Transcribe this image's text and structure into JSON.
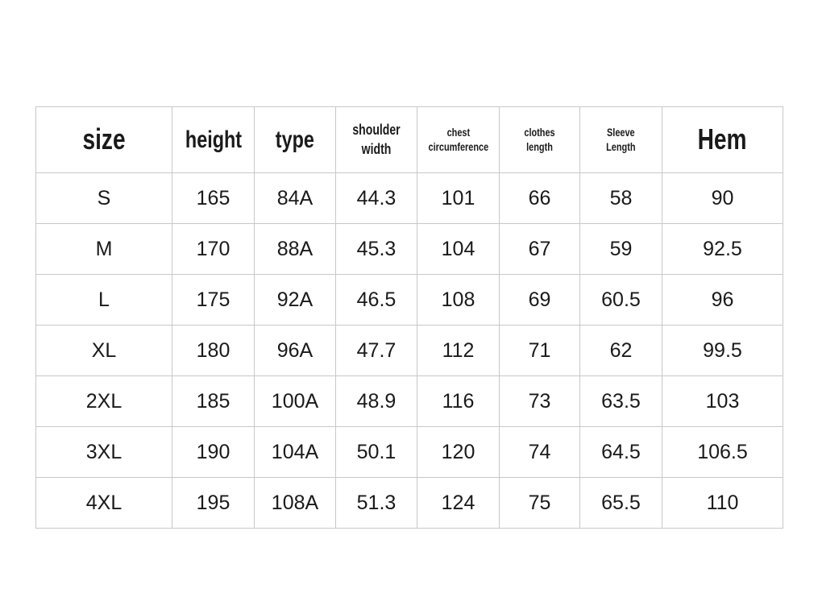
{
  "table": {
    "headers": [
      {
        "line1": "size",
        "line2": ""
      },
      {
        "line1": "height",
        "line2": ""
      },
      {
        "line1": "type",
        "line2": ""
      },
      {
        "line1": "shoulder",
        "line2": "width"
      },
      {
        "line1": "chest",
        "line2": "circumference"
      },
      {
        "line1": "clothes",
        "line2": "length"
      },
      {
        "line1": "Sleeve",
        "line2": "Length"
      },
      {
        "line1": "Hem",
        "line2": ""
      }
    ],
    "rows": [
      [
        "S",
        "165",
        "84A",
        "44.3",
        "101",
        "66",
        "58",
        "90"
      ],
      [
        "M",
        "170",
        "88A",
        "45.3",
        "104",
        "67",
        "59",
        "92.5"
      ],
      [
        "L",
        "175",
        "92A",
        "46.5",
        "108",
        "69",
        "60.5",
        "96"
      ],
      [
        "XL",
        "180",
        "96A",
        "47.7",
        "112",
        "71",
        "62",
        "99.5"
      ],
      [
        "2XL",
        "185",
        "100A",
        "48.9",
        "116",
        "73",
        "63.5",
        "103"
      ],
      [
        "3XL",
        "190",
        "104A",
        "50.1",
        "120",
        "74",
        "64.5",
        "106.5"
      ],
      [
        "4XL",
        "195",
        "108A",
        "51.3",
        "124",
        "75",
        "65.5",
        "110"
      ]
    ]
  }
}
